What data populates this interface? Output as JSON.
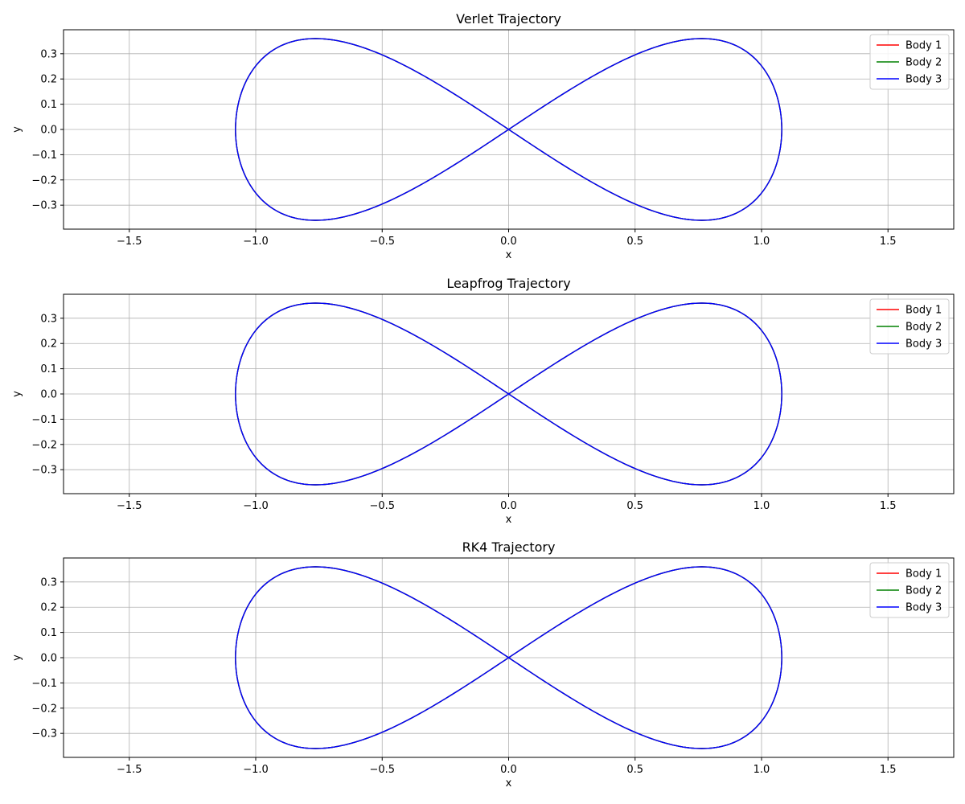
{
  "chart_data": [
    {
      "type": "line",
      "title": "Verlet Trajectory",
      "xlabel": "x",
      "ylabel": "y",
      "xlim": [
        -1.76,
        1.76
      ],
      "ylim": [
        -0.395,
        0.395
      ],
      "xticks": [
        -1.5,
        -1.0,
        -0.5,
        0.0,
        0.5,
        1.0,
        1.5
      ],
      "xtick_labels": [
        "−1.5",
        "−1.0",
        "−0.5",
        "0.0",
        "0.5",
        "1.0",
        "1.5"
      ],
      "yticks": [
        0.3,
        0.2,
        0.1,
        0.0,
        -0.1,
        -0.2,
        -0.3
      ],
      "ytick_labels": [
        "0.3",
        "0.2",
        "0.1",
        "0.0",
        "−0.1",
        "−0.2",
        "−0.3"
      ],
      "grid": true,
      "legend": "top-right",
      "series": [
        {
          "name": "Body 1",
          "color": "#ff0000",
          "curve": "figure-eight",
          "x_extent": 1.08,
          "y_extent": 0.36
        },
        {
          "name": "Body 2",
          "color": "#008000",
          "curve": "figure-eight",
          "x_extent": 1.08,
          "y_extent": 0.36
        },
        {
          "name": "Body 3",
          "color": "#0000ff",
          "curve": "figure-eight",
          "x_extent": 1.08,
          "y_extent": 0.36
        }
      ]
    },
    {
      "type": "line",
      "title": "Leapfrog Trajectory",
      "xlabel": "x",
      "ylabel": "y",
      "xlim": [
        -1.76,
        1.76
      ],
      "ylim": [
        -0.395,
        0.395
      ],
      "xticks": [
        -1.5,
        -1.0,
        -0.5,
        0.0,
        0.5,
        1.0,
        1.5
      ],
      "xtick_labels": [
        "−1.5",
        "−1.0",
        "−0.5",
        "0.0",
        "0.5",
        "1.0",
        "1.5"
      ],
      "yticks": [
        0.3,
        0.2,
        0.1,
        0.0,
        -0.1,
        -0.2,
        -0.3
      ],
      "ytick_labels": [
        "0.3",
        "0.2",
        "0.1",
        "0.0",
        "−0.1",
        "−0.2",
        "−0.3"
      ],
      "grid": true,
      "legend": "top-right",
      "series": [
        {
          "name": "Body 1",
          "color": "#ff0000",
          "curve": "figure-eight",
          "x_extent": 1.08,
          "y_extent": 0.36
        },
        {
          "name": "Body 2",
          "color": "#008000",
          "curve": "figure-eight",
          "x_extent": 1.08,
          "y_extent": 0.36
        },
        {
          "name": "Body 3",
          "color": "#0000ff",
          "curve": "figure-eight",
          "x_extent": 1.08,
          "y_extent": 0.36
        }
      ]
    },
    {
      "type": "line",
      "title": "RK4 Trajectory",
      "xlabel": "x",
      "ylabel": "y",
      "xlim": [
        -1.76,
        1.76
      ],
      "ylim": [
        -0.395,
        0.395
      ],
      "xticks": [
        -1.5,
        -1.0,
        -0.5,
        0.0,
        0.5,
        1.0,
        1.5
      ],
      "xtick_labels": [
        "−1.5",
        "−1.0",
        "−0.5",
        "0.0",
        "0.5",
        "1.0",
        "1.5"
      ],
      "yticks": [
        0.3,
        0.2,
        0.1,
        0.0,
        -0.1,
        -0.2,
        -0.3
      ],
      "ytick_labels": [
        "0.3",
        "0.2",
        "0.1",
        "0.0",
        "−0.1",
        "−0.2",
        "−0.3"
      ],
      "grid": true,
      "legend": "top-right",
      "series": [
        {
          "name": "Body 1",
          "color": "#ff0000",
          "curve": "figure-eight",
          "x_extent": 1.08,
          "y_extent": 0.36
        },
        {
          "name": "Body 2",
          "color": "#008000",
          "curve": "figure-eight",
          "x_extent": 1.08,
          "y_extent": 0.36
        },
        {
          "name": "Body 3",
          "color": "#0000ff",
          "curve": "figure-eight",
          "x_extent": 1.08,
          "y_extent": 0.36
        }
      ]
    }
  ]
}
